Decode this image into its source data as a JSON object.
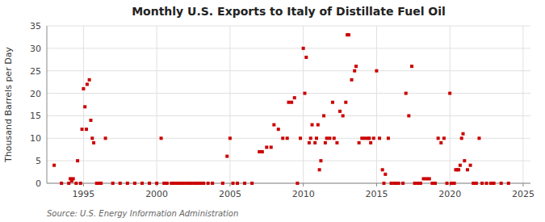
{
  "chart_data": {
    "type": "scatter",
    "title": "Monthly U.S. Exports to Italy of Distillate Fuel Oil",
    "ylabel": "Thousand Barrels per Day",
    "source": "Source: U.S. Energy Information Administration",
    "color": "#cc0000",
    "marker": "square",
    "grid": true,
    "xlim": [
      1992.5,
      2025.5
    ],
    "ylim": [
      0,
      35
    ],
    "xticks": [
      1995,
      2000,
      2005,
      2010,
      2015,
      2020,
      2025
    ],
    "yticks": [
      0,
      5,
      10,
      15,
      20,
      25,
      30,
      35
    ],
    "x": [
      1993.0,
      1993.5,
      1994.0,
      1994.1,
      1994.2,
      1994.3,
      1994.5,
      1994.6,
      1994.8,
      1994.9,
      1995.0,
      1995.1,
      1995.2,
      1995.25,
      1995.4,
      1995.5,
      1995.6,
      1995.7,
      1995.9,
      1996.0,
      1996.1,
      1996.2,
      1996.5,
      1997.0,
      1997.5,
      1998.0,
      1998.5,
      1999.0,
      1999.5,
      2000.0,
      2000.3,
      2000.5,
      2000.7,
      2001.0,
      2001.2,
      2001.4,
      2001.6,
      2001.8,
      2002.0,
      2002.2,
      2002.4,
      2002.6,
      2002.8,
      2003.0,
      2003.2,
      2003.5,
      2003.8,
      2004.5,
      2004.8,
      2005.0,
      2005.2,
      2005.5,
      2006.0,
      2006.5,
      2007.0,
      2007.2,
      2007.5,
      2007.8,
      2008.0,
      2008.3,
      2008.6,
      2008.9,
      2009.0,
      2009.2,
      2009.4,
      2009.6,
      2009.8,
      2010.0,
      2010.1,
      2010.2,
      2010.4,
      2010.5,
      2010.6,
      2010.8,
      2010.9,
      2011.0,
      2011.1,
      2011.2,
      2011.4,
      2011.5,
      2011.6,
      2011.8,
      2012.0,
      2012.1,
      2012.3,
      2012.5,
      2012.7,
      2012.9,
      2013.0,
      2013.1,
      2013.3,
      2013.5,
      2013.6,
      2013.8,
      2014.0,
      2014.2,
      2014.4,
      2014.5,
      2014.6,
      2014.8,
      2015.0,
      2015.2,
      2015.4,
      2015.5,
      2015.6,
      2015.8,
      2016.0,
      2016.2,
      2016.4,
      2016.5,
      2016.8,
      2017.0,
      2017.2,
      2017.4,
      2017.6,
      2017.8,
      2018.0,
      2018.2,
      2018.4,
      2018.6,
      2018.8,
      2019.0,
      2019.2,
      2019.4,
      2019.6,
      2019.8,
      2020.0,
      2020.1,
      2020.2,
      2020.3,
      2020.4,
      2020.5,
      2020.6,
      2020.7,
      2020.8,
      2020.9,
      2021.0,
      2021.2,
      2021.4,
      2021.6,
      2021.8,
      2022.0,
      2022.2,
      2022.5,
      2022.8,
      2023.0,
      2023.5,
      2024.0
    ],
    "values": [
      4.0,
      0.0,
      0.0,
      1.0,
      0.5,
      1.0,
      0.0,
      5.0,
      0.0,
      12.0,
      21.0,
      17.0,
      12.0,
      22.0,
      23.0,
      14.0,
      10.0,
      9.0,
      0.0,
      0.0,
      0.0,
      0.0,
      10.0,
      0.0,
      0.0,
      0.0,
      0.0,
      0.0,
      0.0,
      0.0,
      10.0,
      0.0,
      0.0,
      0.0,
      0.0,
      0.0,
      0.0,
      0.0,
      0.0,
      0.0,
      0.0,
      0.0,
      0.0,
      0.0,
      0.0,
      0.0,
      0.0,
      0.0,
      6.0,
      10.0,
      0.0,
      0.0,
      0.0,
      0.0,
      7.0,
      7.0,
      8.0,
      8.0,
      13.0,
      12.0,
      10.0,
      10.0,
      18.0,
      18.0,
      19.0,
      0.0,
      10.0,
      30.0,
      20.0,
      28.0,
      9.0,
      10.0,
      13.0,
      9.0,
      10.0,
      13.0,
      3.0,
      5.0,
      15.0,
      9.0,
      10.0,
      10.0,
      18.0,
      10.0,
      9.0,
      16.0,
      15.0,
      18.0,
      33.0,
      33.0,
      23.0,
      25.0,
      26.0,
      9.0,
      10.0,
      10.0,
      10.0,
      10.0,
      9.0,
      10.0,
      25.0,
      10.0,
      3.0,
      0.0,
      2.0,
      10.0,
      0.0,
      0.0,
      0.0,
      0.0,
      0.0,
      20.0,
      15.0,
      26.0,
      0.0,
      0.0,
      0.0,
      1.0,
      1.0,
      1.0,
      0.0,
      0.0,
      10.0,
      9.0,
      10.0,
      0.0,
      20.0,
      0.0,
      0.0,
      0.0,
      3.0,
      3.0,
      3.0,
      4.0,
      10.0,
      11.0,
      5.0,
      3.0,
      4.0,
      0.0,
      0.0,
      10.0,
      0.0,
      0.0,
      0.0,
      0.0,
      0.0,
      0.0
    ]
  }
}
